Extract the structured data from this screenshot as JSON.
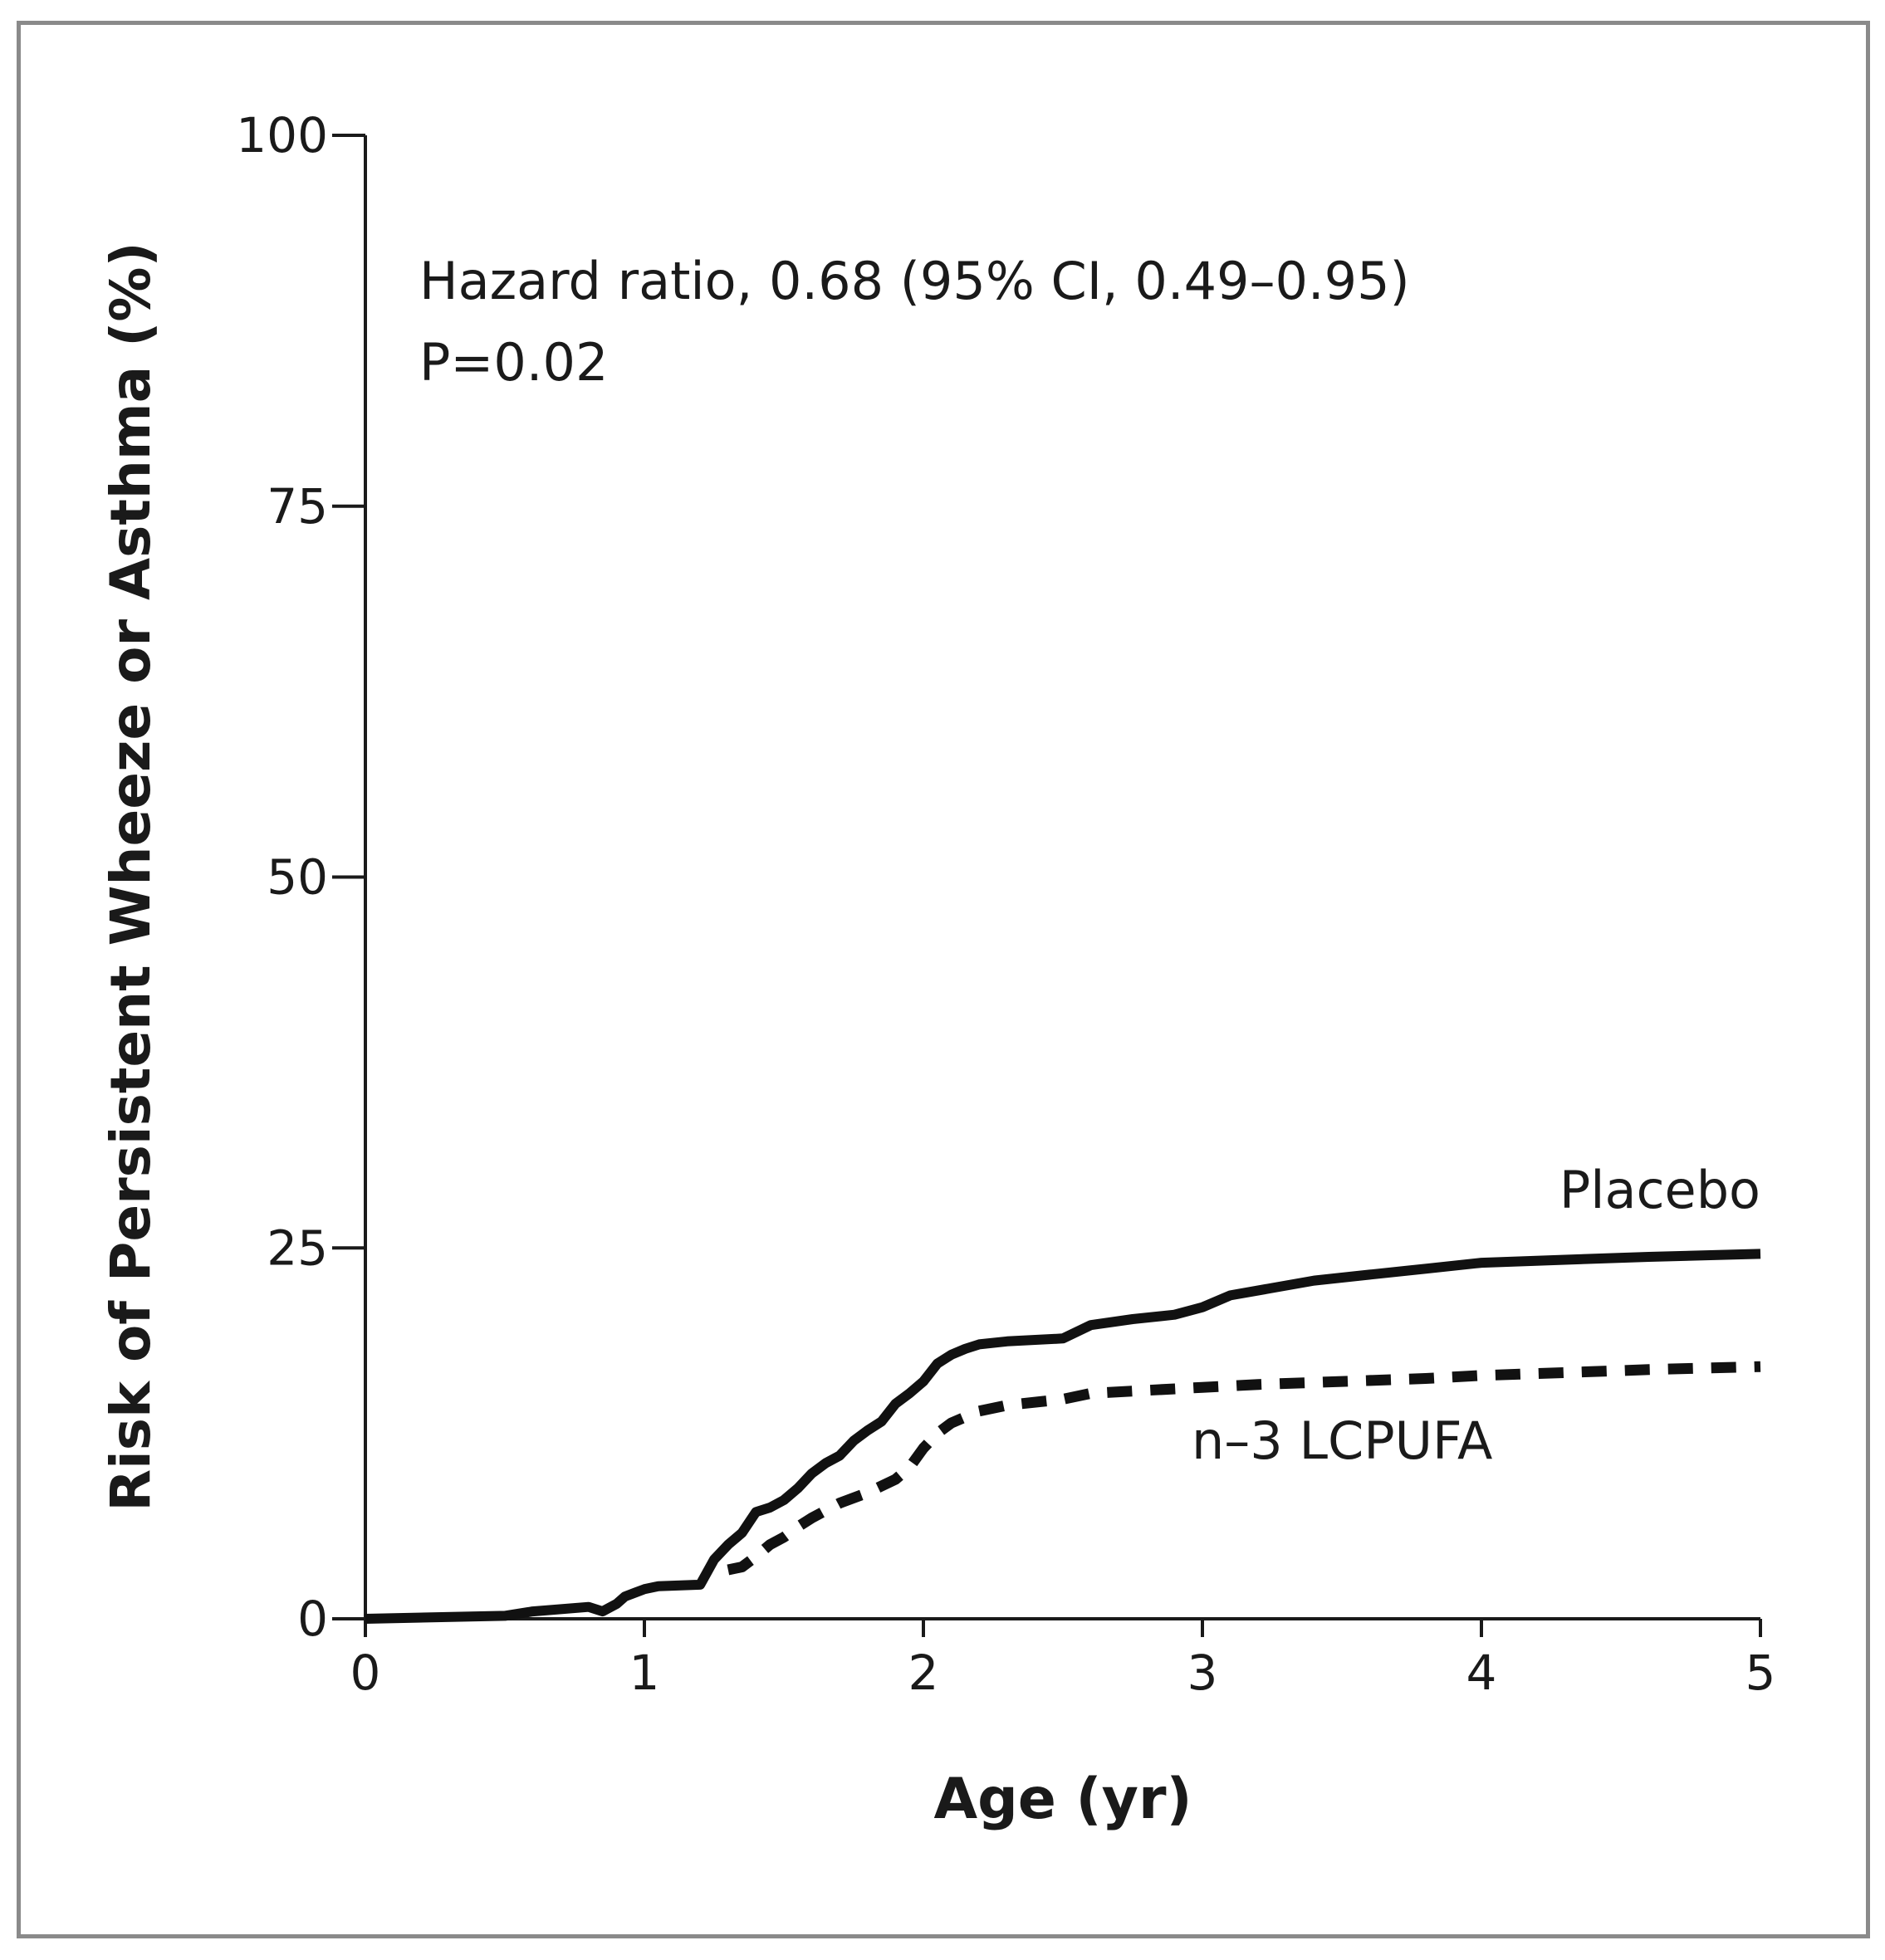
{
  "chart_data": {
    "type": "line",
    "title": "",
    "xlabel": "Age (yr)",
    "ylabel": "Risk of Persistent Wheeze or Asthma (%)",
    "xlim": [
      0,
      5
    ],
    "ylim": [
      0,
      100
    ],
    "x_ticks": [
      "0",
      "1",
      "2",
      "3",
      "4",
      "5"
    ],
    "y_ticks": [
      "0",
      "25",
      "50",
      "75",
      "100"
    ],
    "grid": false,
    "annotation_lines": [
      "Hazard ratio, 0.68 (95% CI, 0.49–0.95)",
      "P=0.02"
    ],
    "series": [
      {
        "name": "Placebo",
        "style": "solid",
        "color": "#111111",
        "x": [
          0,
          0.5,
          0.6,
          0.8,
          0.85,
          0.9,
          0.93,
          1.0,
          1.05,
          1.2,
          1.25,
          1.3,
          1.35,
          1.4,
          1.45,
          1.5,
          1.55,
          1.6,
          1.65,
          1.7,
          1.75,
          1.8,
          1.85,
          1.9,
          1.95,
          2.0,
          2.05,
          2.1,
          2.15,
          2.2,
          2.3,
          2.5,
          2.6,
          2.75,
          2.9,
          3.0,
          3.1,
          3.25,
          3.4,
          3.6,
          3.8,
          4.0,
          4.3,
          4.6,
          5.0
        ],
        "y": [
          0,
          0.2,
          0.5,
          0.8,
          0.5,
          1.0,
          1.5,
          2.0,
          2.2,
          2.3,
          4.0,
          5.0,
          5.8,
          7.2,
          7.5,
          8.0,
          8.8,
          9.8,
          10.5,
          11.0,
          12.0,
          12.7,
          13.3,
          14.5,
          15.2,
          16.0,
          17.2,
          17.8,
          18.2,
          18.5,
          18.7,
          18.9,
          19.8,
          20.2,
          20.5,
          21.0,
          21.8,
          22.3,
          22.8,
          23.2,
          23.6,
          24.0,
          24.2,
          24.4,
          24.6
        ]
      },
      {
        "name": "n–3 LCPUFA",
        "style": "dashed",
        "color": "#111111",
        "x": [
          1.3,
          1.35,
          1.4,
          1.45,
          1.5,
          1.55,
          1.6,
          1.65,
          1.7,
          1.8,
          1.9,
          1.95,
          2.0,
          2.05,
          2.1,
          2.2,
          2.3,
          2.5,
          2.6,
          2.8,
          3.0,
          3.2,
          3.5,
          3.8,
          4.0,
          4.3,
          4.6,
          5.0
        ],
        "y": [
          3.3,
          3.5,
          4.2,
          5.0,
          5.5,
          6.2,
          6.8,
          7.3,
          7.8,
          8.5,
          9.4,
          10.2,
          11.5,
          12.5,
          13.2,
          14.0,
          14.4,
          14.8,
          15.2,
          15.4,
          15.6,
          15.8,
          16.0,
          16.2,
          16.4,
          16.6,
          16.8,
          17.0
        ]
      }
    ]
  }
}
